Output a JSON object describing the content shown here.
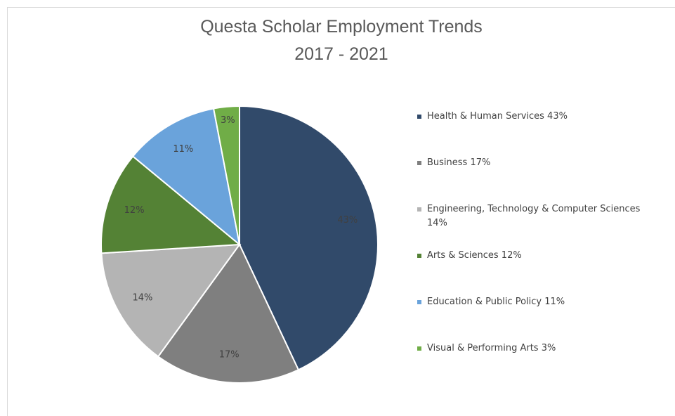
{
  "chart_data": {
    "type": "pie",
    "title": [
      "Questa Scholar Employment Trends",
      "2017 - 2021"
    ],
    "categories": [
      "Health & Human Services 43%",
      "Business 17%",
      "Engineering, Technology & Computer Sciences 14%",
      "Arts & Sciences 12%",
      "Education & Public Policy 11%",
      "Visual & Performing Arts 3%"
    ],
    "values": [
      43,
      17,
      14,
      12,
      11,
      3
    ],
    "value_labels": [
      "43%",
      "17%",
      "14%",
      "12%",
      "11%",
      "3%"
    ],
    "colors": [
      "#314a6a",
      "#7f7f7f",
      "#b4b4b4",
      "#548235",
      "#6aa3db",
      "#70ad47"
    ],
    "legend": "right"
  }
}
